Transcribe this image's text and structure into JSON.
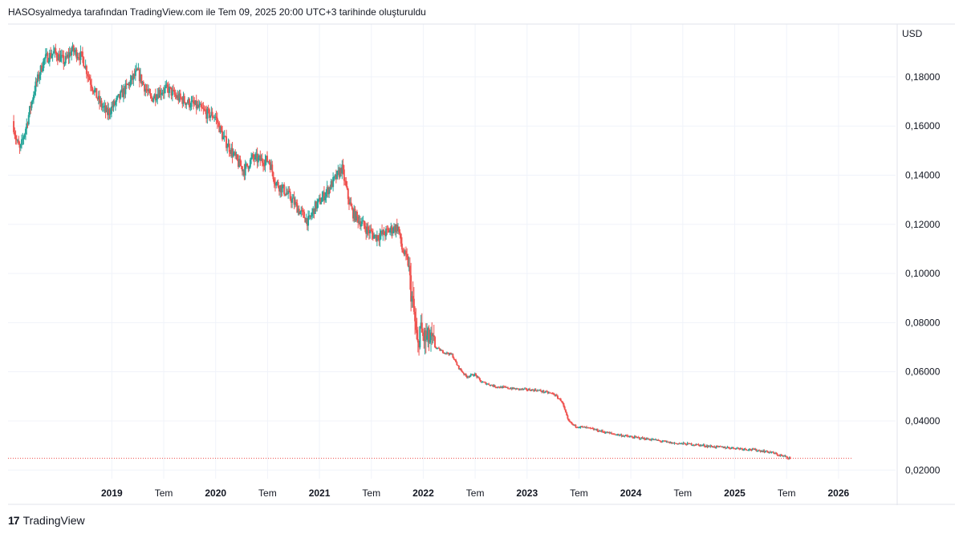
{
  "header": {
    "title": "HASOsyalmedya tarafından TradingView.com ile Tem 09, 2025 20:00 UTC+3 tarihinde oluşturuldu"
  },
  "footer": {
    "logo_mark": "17",
    "brand": "TradingView"
  },
  "colors": {
    "up": "#26a69a",
    "down": "#ef5350",
    "grid": "#f0f3fa",
    "axis_text": "#131722",
    "price_line": "#ef5350"
  },
  "chart_data": {
    "type": "candlestick",
    "title": "",
    "currency": "USD",
    "x_axis": {
      "start_year": 2018.0,
      "end_year": 2026.55,
      "ticks": [
        {
          "t": 2019.0,
          "label": "2019",
          "major": true
        },
        {
          "t": 2019.5,
          "label": "Tem",
          "major": false
        },
        {
          "t": 2020.0,
          "label": "2020",
          "major": true
        },
        {
          "t": 2020.5,
          "label": "Tem",
          "major": false
        },
        {
          "t": 2021.0,
          "label": "2021",
          "major": true
        },
        {
          "t": 2021.5,
          "label": "Tem",
          "major": false
        },
        {
          "t": 2022.0,
          "label": "2022",
          "major": true
        },
        {
          "t": 2022.5,
          "label": "Tem",
          "major": false
        },
        {
          "t": 2023.0,
          "label": "2023",
          "major": true
        },
        {
          "t": 2023.5,
          "label": "Tem",
          "major": false
        },
        {
          "t": 2024.0,
          "label": "2024",
          "major": true
        },
        {
          "t": 2024.5,
          "label": "Tem",
          "major": false
        },
        {
          "t": 2025.0,
          "label": "2025",
          "major": true
        },
        {
          "t": 2025.5,
          "label": "Tem",
          "major": false
        },
        {
          "t": 2026.0,
          "label": "2026",
          "major": true
        }
      ]
    },
    "y_axis": {
      "range": [
        0.0165,
        0.2015
      ],
      "ticks": [
        {
          "v": 0.18,
          "label": "0,18000"
        },
        {
          "v": 0.16,
          "label": "0,16000"
        },
        {
          "v": 0.14,
          "label": "0,14000"
        },
        {
          "v": 0.12,
          "label": "0,12000"
        },
        {
          "v": 0.1,
          "label": "0,10000"
        },
        {
          "v": 0.08,
          "label": "0,08000"
        },
        {
          "v": 0.06,
          "label": "0,06000"
        },
        {
          "v": 0.04,
          "label": "0,04000"
        },
        {
          "v": 0.02,
          "label": "0,02000"
        }
      ]
    },
    "last_price": 0.0248,
    "price_path": [
      [
        2018.05,
        0.162
      ],
      [
        2018.08,
        0.155
      ],
      [
        2018.12,
        0.15
      ],
      [
        2018.18,
        0.16
      ],
      [
        2018.26,
        0.175
      ],
      [
        2018.35,
        0.187
      ],
      [
        2018.45,
        0.19
      ],
      [
        2018.55,
        0.186
      ],
      [
        2018.62,
        0.191
      ],
      [
        2018.72,
        0.188
      ],
      [
        2018.8,
        0.178
      ],
      [
        2018.88,
        0.17
      ],
      [
        2018.96,
        0.165
      ],
      [
        2019.05,
        0.17
      ],
      [
        2019.15,
        0.176
      ],
      [
        2019.25,
        0.182
      ],
      [
        2019.32,
        0.176
      ],
      [
        2019.38,
        0.171
      ],
      [
        2019.46,
        0.174
      ],
      [
        2019.55,
        0.175
      ],
      [
        2019.62,
        0.172
      ],
      [
        2019.72,
        0.17
      ],
      [
        2019.82,
        0.168
      ],
      [
        2019.92,
        0.165
      ],
      [
        2020.0,
        0.164
      ],
      [
        2020.08,
        0.155
      ],
      [
        2020.14,
        0.151
      ],
      [
        2020.22,
        0.145
      ],
      [
        2020.28,
        0.142
      ],
      [
        2020.36,
        0.147
      ],
      [
        2020.44,
        0.146
      ],
      [
        2020.52,
        0.146
      ],
      [
        2020.58,
        0.137
      ],
      [
        2020.66,
        0.134
      ],
      [
        2020.74,
        0.13
      ],
      [
        2020.82,
        0.125
      ],
      [
        2020.9,
        0.121
      ],
      [
        2020.96,
        0.127
      ],
      [
        2021.02,
        0.13
      ],
      [
        2021.1,
        0.135
      ],
      [
        2021.18,
        0.14
      ],
      [
        2021.22,
        0.143
      ],
      [
        2021.28,
        0.131
      ],
      [
        2021.32,
        0.125
      ],
      [
        2021.38,
        0.122
      ],
      [
        2021.46,
        0.118
      ],
      [
        2021.54,
        0.115
      ],
      [
        2021.62,
        0.116
      ],
      [
        2021.7,
        0.118
      ],
      [
        2021.76,
        0.119
      ],
      [
        2021.8,
        0.11
      ],
      [
        2021.86,
        0.104
      ],
      [
        2021.88,
        0.095
      ],
      [
        2021.92,
        0.082
      ],
      [
        2021.95,
        0.068
      ],
      [
        2021.97,
        0.078
      ],
      [
        2022.0,
        0.074
      ],
      [
        2022.06,
        0.073
      ],
      [
        2022.12,
        0.07
      ],
      [
        2022.2,
        0.068
      ],
      [
        2022.28,
        0.067
      ],
      [
        2022.34,
        0.062
      ],
      [
        2022.42,
        0.058
      ],
      [
        2022.5,
        0.059
      ],
      [
        2022.56,
        0.056
      ],
      [
        2022.7,
        0.054
      ],
      [
        2022.9,
        0.053
      ],
      [
        2023.1,
        0.0525
      ],
      [
        2023.26,
        0.051
      ],
      [
        2023.34,
        0.048
      ],
      [
        2023.4,
        0.04
      ],
      [
        2023.46,
        0.038
      ],
      [
        2023.6,
        0.037
      ],
      [
        2023.8,
        0.035
      ],
      [
        2024.0,
        0.0335
      ],
      [
        2024.2,
        0.0325
      ],
      [
        2024.4,
        0.031
      ],
      [
        2024.6,
        0.0305
      ],
      [
        2024.8,
        0.0295
      ],
      [
        2025.0,
        0.029
      ],
      [
        2025.2,
        0.0282
      ],
      [
        2025.36,
        0.0272
      ],
      [
        2025.42,
        0.0262
      ],
      [
        2025.5,
        0.0254
      ],
      [
        2025.54,
        0.0248
      ]
    ],
    "candles_per_year": 104
  }
}
